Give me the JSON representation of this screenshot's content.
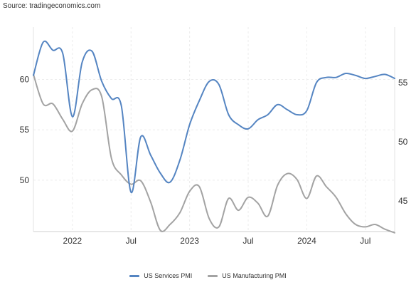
{
  "source": "Source: tradingeconomics.com",
  "legend": [
    {
      "name": "US Services PMI",
      "color": "#5585c2"
    },
    {
      "name": "US Manufacturing PMI",
      "color": "#a3a3a3"
    }
  ],
  "chart_data": {
    "type": "line",
    "title": "",
    "grid": true,
    "legend_position": "bottom",
    "x_ticks": [
      {
        "label": "2022",
        "x": 2022.0
      },
      {
        "label": "Jul",
        "x": 2022.5
      },
      {
        "label": "2023",
        "x": 2023.0
      },
      {
        "label": "Jul",
        "x": 2023.5
      },
      {
        "label": "2024",
        "x": 2024.0
      },
      {
        "label": "Jul",
        "x": 2024.5
      }
    ],
    "xlim": [
      2021.667,
      2024.75
    ],
    "y_left": {
      "ticks": [
        50,
        55,
        60
      ],
      "lim": [
        44.9,
        65.2
      ]
    },
    "y_right": {
      "ticks": [
        45,
        50,
        55
      ],
      "lim": [
        42.4,
        59.7
      ]
    },
    "series": [
      {
        "name": "US Services PMI",
        "axis": "left",
        "color": "#5585c2",
        "x": [
          2021.667,
          2021.75,
          2021.833,
          2021.917,
          2022.0,
          2022.083,
          2022.167,
          2022.25,
          2022.333,
          2022.417,
          2022.5,
          2022.583,
          2022.667,
          2022.75,
          2022.833,
          2022.917,
          2023.0,
          2023.083,
          2023.167,
          2023.25,
          2023.333,
          2023.417,
          2023.5,
          2023.583,
          2023.667,
          2023.75,
          2023.833,
          2023.917,
          2024.0,
          2024.083,
          2024.167,
          2024.25,
          2024.333,
          2024.417,
          2024.5,
          2024.583,
          2024.667,
          2024.75
        ],
        "values": [
          60.4,
          63.7,
          62.9,
          62.6,
          56.3,
          61.7,
          62.8,
          59.8,
          58.1,
          57.4,
          48.8,
          54.3,
          52.5,
          50.7,
          49.8,
          52.0,
          55.5,
          57.9,
          59.8,
          59.5,
          56.5,
          55.5,
          55.1,
          56.0,
          56.5,
          57.5,
          57.0,
          56.5,
          56.9,
          59.7,
          60.2,
          60.2,
          60.6,
          60.4,
          60.1,
          60.3,
          60.5,
          60.1
        ]
      },
      {
        "name": "US Manufacturing PMI",
        "axis": "right",
        "color": "#a3a3a3",
        "x": [
          2021.667,
          2021.75,
          2021.833,
          2021.917,
          2022.0,
          2022.083,
          2022.167,
          2022.25,
          2022.333,
          2022.417,
          2022.5,
          2022.583,
          2022.667,
          2022.75,
          2022.833,
          2022.917,
          2023.0,
          2023.083,
          2023.167,
          2023.25,
          2023.333,
          2023.417,
          2023.5,
          2023.583,
          2023.667,
          2023.75,
          2023.833,
          2023.917,
          2024.0,
          2024.083,
          2024.167,
          2024.25,
          2024.333,
          2024.417,
          2024.5,
          2024.583,
          2024.667,
          2024.75
        ],
        "values": [
          55.7,
          53.2,
          53.2,
          51.9,
          50.9,
          53.2,
          54.4,
          53.8,
          48.6,
          47.2,
          46.4,
          46.7,
          44.9,
          42.5,
          43.0,
          44.0,
          45.8,
          46.2,
          43.5,
          42.8,
          45.2,
          44.2,
          45.3,
          44.8,
          43.7,
          46.3,
          47.3,
          46.8,
          45.2,
          47.1,
          46.2,
          45.3,
          43.9,
          43.0,
          42.8,
          43.0,
          42.6,
          42.3
        ]
      }
    ]
  }
}
